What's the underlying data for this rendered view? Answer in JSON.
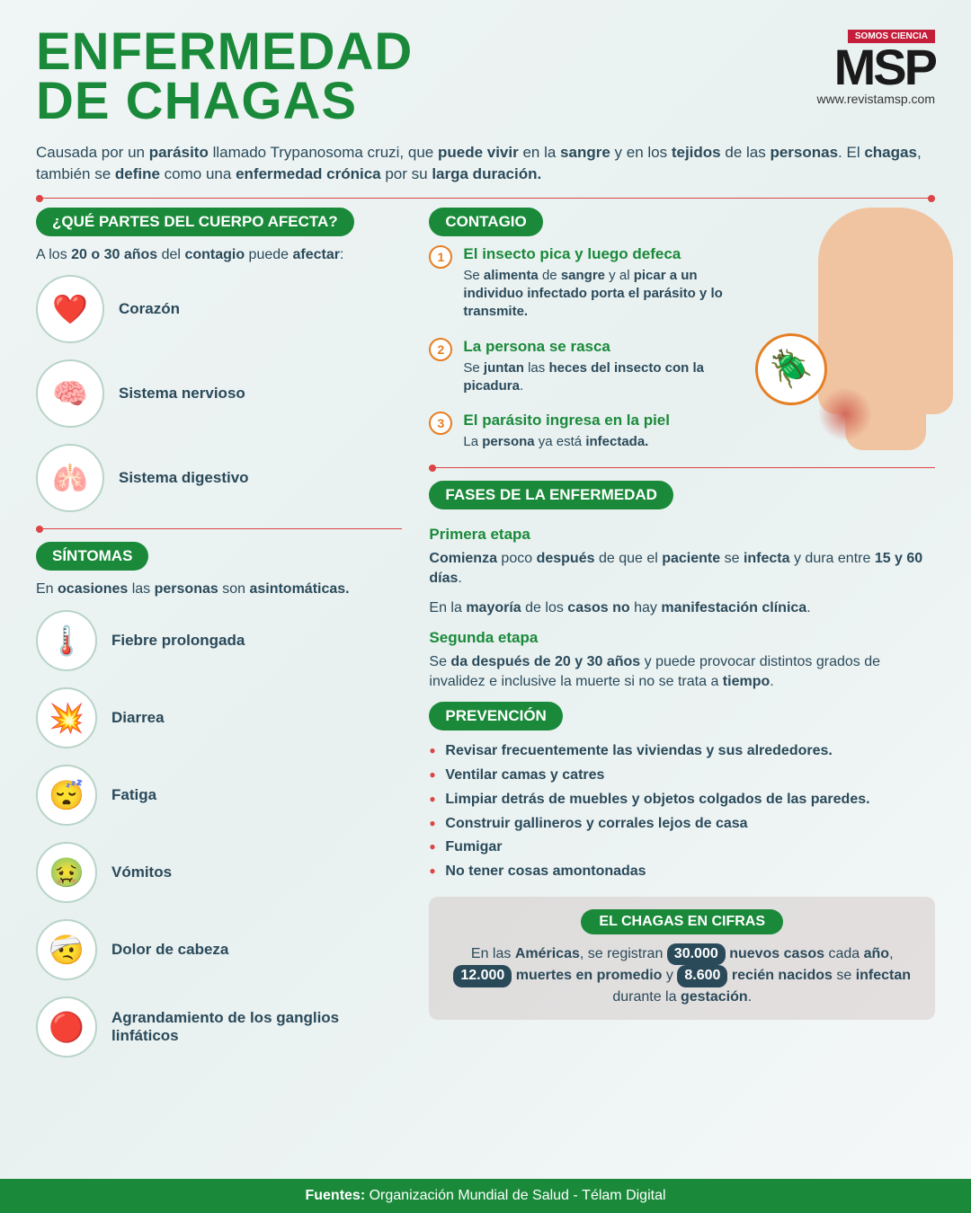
{
  "colors": {
    "primary_green": "#1a8a3a",
    "text_dark": "#2a4a5a",
    "accent_red": "#d44",
    "accent_orange": "#e67e22",
    "logo_red": "#c41e3a"
  },
  "header": {
    "title_line1": "ENFERMEDAD",
    "title_line2": "DE CHAGAS",
    "logo_tag": "SOMOS CIENCIA",
    "logo_text": "MSP",
    "logo_url": "www.revistamsp.com"
  },
  "intro": "Causada por un <b>parásito</b> llamado Trypanosoma cruzi, que <b>puede vivir</b> en la <b>sangre</b> y en los <b>tejidos</b> de las <b>personas</b>. El <b>chagas</b>, también se <b>define</b> como una <b>enfermedad crónica</b> por su <b>larga duración.</b>",
  "body_parts": {
    "header": "¿QUÉ PARTES DEL CUERPO AFECTA?",
    "intro": "A los <b>20 o 30 años</b> del <b>contagio</b> puede <b>afectar</b>:",
    "items": [
      {
        "icon": "❤️",
        "label": "Corazón"
      },
      {
        "icon": "🧠",
        "label": "Sistema nervioso"
      },
      {
        "icon": "🫁",
        "label": "Sistema digestivo"
      }
    ]
  },
  "symptoms": {
    "header": "SÍNTOMAS",
    "intro": "En <b>ocasiones</b> las <b>personas</b> son <b>asintomáticas.</b>",
    "items": [
      {
        "icon": "🌡️",
        "label": "Fiebre prolongada"
      },
      {
        "icon": "💥",
        "label": "Diarrea"
      },
      {
        "icon": "😴",
        "label": "Fatiga"
      },
      {
        "icon": "🤢",
        "label": "Vómitos"
      },
      {
        "icon": "🤕",
        "label": "Dolor de cabeza"
      },
      {
        "icon": "🔴",
        "label": "Agrandamiento de los ganglios linfáticos"
      }
    ]
  },
  "contagion": {
    "header": "CONTAGIO",
    "steps": [
      {
        "num": "1",
        "title": "El insecto pica y luego defeca",
        "desc": "Se <b>alimenta</b> de <b>sangre</b> y al <b>picar a un individuo infectado porta el parásito y lo transmite.</b>"
      },
      {
        "num": "2",
        "title": "La persona se rasca",
        "desc": "Se <b>juntan</b> las <b>heces del insecto con la picadura</b>."
      },
      {
        "num": "3",
        "title": "El parásito ingresa en la piel",
        "desc": "La <b>persona</b> ya está <b>infectada.</b>"
      }
    ],
    "bug_icon": "🪲"
  },
  "phases": {
    "header": "FASES DE LA ENFERMEDAD",
    "phase1_title": "Primera etapa",
    "phase1_text1": "<b>Comienza</b> poco <b>después</b> de que el <b>paciente</b> se <b>infecta</b> y dura entre <b>15 y 60 días</b>.",
    "phase1_text2": "En la <b>mayoría</b> de los <b>casos no</b> hay <b>manifestación clínica</b>.",
    "phase2_title": "Segunda etapa",
    "phase2_text": "Se <b>da después de 20 y 30 años</b> y puede provocar distintos grados de invalidez e inclusive la muerte si no se trata a <b>tiempo</b>."
  },
  "prevention": {
    "header": "PREVENCIÓN",
    "items": [
      "Revisar frecuentemente las viviendas y sus alrededores.",
      "Ventilar camas y catres",
      "Limpiar detrás de muebles y objetos colgados de las paredes.",
      "Construir gallineros y corrales lejos de casa",
      "Fumigar",
      "No tener cosas amontonadas"
    ]
  },
  "stats": {
    "header": "EL CHAGAS EN CIFRAS",
    "text_parts": [
      "En las ",
      "Américas",
      ", se registran ",
      "30.000",
      " ",
      "nuevos casos",
      " cada ",
      "año",
      ", ",
      "12.000",
      " ",
      "muertes en promedio",
      " y ",
      "8.600",
      " ",
      "recién nacidos",
      " se ",
      "infectan",
      " durante la ",
      "gestación",
      "."
    ]
  },
  "footer": {
    "label": "Fuentes:",
    "source1": "Organización Mundial de Salud",
    "source2": "Télam Digital"
  }
}
